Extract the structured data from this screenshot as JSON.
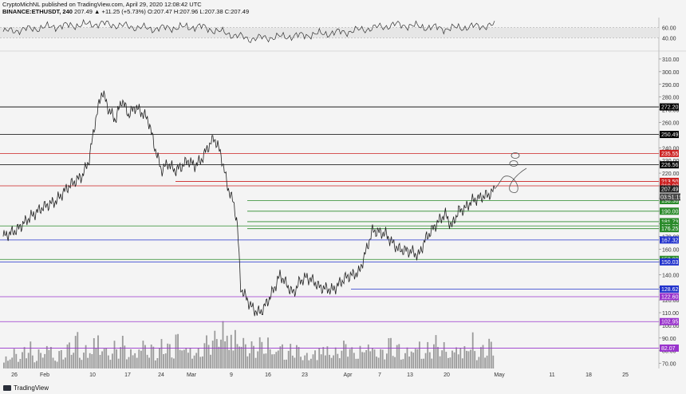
{
  "header": {
    "publisher_line": "CryptoMichNL published on TradingView.com, April 29, 2020 12:08:42 UTC",
    "symbol": "BINANCE:ETHUSDT, 240",
    "ohlc": "207.49 ▲ +11.25 (+5.73%) O:207.47 H:207.96 L:207.38 C:207.49"
  },
  "footer": {
    "brand": "TradingView"
  },
  "chart_data": [
    {
      "type": "line",
      "title": "",
      "rsi_ticks": [
        "60.00",
        "40.00"
      ],
      "ylim": [
        20,
        80
      ],
      "x": [
        0,
        0.1,
        0.2,
        0.3,
        0.4,
        0.5,
        0.6,
        0.7,
        0.8,
        0.9,
        1.0
      ],
      "values": [
        52,
        62,
        68,
        58,
        62,
        38,
        44,
        52,
        66,
        58,
        65
      ]
    },
    {
      "type": "line",
      "title": "",
      "ylim": [
        66,
        315
      ],
      "y_ticks": [
        "310.00",
        "300.00",
        "290.00",
        "280.00",
        "270.00",
        "260.00",
        "250.00",
        "240.00",
        "230.00",
        "220.00",
        "210.00",
        "200.00",
        "190.00",
        "180.00",
        "170.00",
        "160.00",
        "150.00",
        "140.00",
        "130.00",
        "120.00",
        "110.00",
        "100.00",
        "90.00",
        "80.00",
        "70.00"
      ],
      "x_ticks": [
        "26",
        "Feb",
        "10",
        "17",
        "24",
        "Mar",
        "9",
        "16",
        "23",
        "Apr",
        "7",
        "13",
        "20",
        "May",
        "11",
        "18",
        "25"
      ],
      "price": [
        [
          0,
          170
        ],
        [
          0.02,
          175
        ],
        [
          0.04,
          185
        ],
        [
          0.06,
          193
        ],
        [
          0.08,
          198
        ],
        [
          0.1,
          210
        ],
        [
          0.12,
          218
        ],
        [
          0.13,
          230
        ],
        [
          0.14,
          262
        ],
        [
          0.15,
          285
        ],
        [
          0.16,
          270
        ],
        [
          0.17,
          262
        ],
        [
          0.18,
          278
        ],
        [
          0.19,
          266
        ],
        [
          0.2,
          272
        ],
        [
          0.21,
          268
        ],
        [
          0.22,
          262
        ],
        [
          0.23,
          240
        ],
        [
          0.24,
          222
        ],
        [
          0.25,
          228
        ],
        [
          0.26,
          222
        ],
        [
          0.27,
          225
        ],
        [
          0.28,
          230
        ],
        [
          0.29,
          226
        ],
        [
          0.3,
          230
        ],
        [
          0.31,
          240
        ],
        [
          0.32,
          248
        ],
        [
          0.33,
          235
        ],
        [
          0.34,
          210
        ],
        [
          0.35,
          195
        ],
        [
          0.355,
          180
        ],
        [
          0.36,
          130
        ],
        [
          0.37,
          120
        ],
        [
          0.38,
          112
        ],
        [
          0.39,
          110
        ],
        [
          0.4,
          118
        ],
        [
          0.41,
          128
        ],
        [
          0.42,
          140
        ],
        [
          0.43,
          132
        ],
        [
          0.44,
          125
        ],
        [
          0.45,
          135
        ],
        [
          0.46,
          138
        ],
        [
          0.47,
          135
        ],
        [
          0.48,
          130
        ],
        [
          0.5,
          128
        ],
        [
          0.52,
          138
        ],
        [
          0.54,
          142
        ],
        [
          0.56,
          175
        ],
        [
          0.58,
          172
        ],
        [
          0.59,
          165
        ],
        [
          0.6,
          160
        ],
        [
          0.62,
          158
        ],
        [
          0.63,
          155
        ],
        [
          0.64,
          168
        ],
        [
          0.65,
          175
        ],
        [
          0.66,
          182
        ],
        [
          0.67,
          188
        ],
        [
          0.68,
          178
        ],
        [
          0.69,
          190
        ],
        [
          0.7,
          192
        ],
        [
          0.71,
          198
        ],
        [
          0.72,
          200
        ],
        [
          0.73,
          202
        ],
        [
          0.74,
          204
        ],
        [
          0.745,
          207.49
        ]
      ],
      "volume": [
        0.3,
        0.4,
        0.3,
        0.5,
        0.3,
        0.4,
        0.6,
        0.3,
        0.4,
        0.5,
        0.7,
        0.4,
        0.5,
        0.8,
        0.6,
        0.4,
        0.5,
        0.6,
        0.4,
        0.5,
        0.7,
        0.5,
        0.4,
        0.6,
        0.5,
        0.8,
        0.6,
        0.5,
        0.4,
        0.6,
        0.7,
        0.9,
        1.0,
        0.9,
        0.8,
        0.6,
        0.5,
        0.6,
        0.7,
        0.5,
        0.6,
        0.4,
        0.5,
        0.4,
        0.3,
        0.4,
        0.6,
        0.5,
        0.4,
        0.5,
        0.6,
        0.4,
        0.5,
        0.7,
        0.5,
        0.4,
        0.6,
        0.5,
        0.4,
        0.5,
        0.6,
        0.4,
        0.5,
        0.6,
        0.5,
        0.4,
        0.6,
        0.5,
        0.7,
        0.4,
        0.5,
        0.6
      ],
      "levels": [
        {
          "value": 272.2,
          "label": "272.20",
          "line": "#000000",
          "badge": "#000000"
        },
        {
          "value": 250.49,
          "label": "250.49",
          "line": "#000000",
          "badge": "#000000"
        },
        {
          "value": 235.55,
          "label": "235.55",
          "line": "#cc2222",
          "badge": "#cc2222"
        },
        {
          "value": 226.56,
          "label": "226.56",
          "line": "#000000",
          "badge": "#000000"
        },
        {
          "value": 213.5,
          "label": "213.50",
          "line": "#cc2222",
          "badge": "#cc2222"
        },
        {
          "value": 210.0,
          "label": "210.00",
          "line": "#cc2222",
          "badge": "#cc2222"
        },
        {
          "value": 207.49,
          "label": "207.49",
          "line": "none",
          "badge": "#222222"
        },
        {
          "value": 198.36,
          "label": "198.36",
          "line": "#2a8a2a",
          "badge": "#2a8a2a"
        },
        {
          "value": 190.0,
          "label": "190.00",
          "line": "#2a8a2a",
          "badge": "#2a8a2a"
        },
        {
          "value": 181.73,
          "label": "181.73",
          "line": "#2a8a2a",
          "badge": "#2a8a2a"
        },
        {
          "value": 178.38,
          "label": "178.38",
          "line": "#2a8a2a",
          "badge": "#2a8a2a"
        },
        {
          "value": 176.25,
          "label": "176.25",
          "line": "#2a8a2a",
          "badge": "#2a8a2a"
        },
        {
          "value": 167.32,
          "label": "167.32",
          "line": "#2233cc",
          "badge": "#2233cc"
        },
        {
          "value": 152.0,
          "label": "152.00",
          "line": "#2a8a2a",
          "badge": "#2a8a2a"
        },
        {
          "value": 150.03,
          "label": "150.03",
          "line": "#2233cc",
          "badge": "#2233cc"
        },
        {
          "value": 128.62,
          "label": "128.62",
          "line": "#2233cc",
          "badge": "#2233cc"
        },
        {
          "value": 122.6,
          "label": "122.60",
          "line": "#9933cc",
          "badge": "#9933cc"
        },
        {
          "value": 102.95,
          "label": "102.95",
          "line": "#9933cc",
          "badge": "#9933cc"
        },
        {
          "value": 82.07,
          "label": "82.07",
          "line": "#9933cc",
          "badge": "#9933cc"
        }
      ],
      "countdown": "03:51:19"
    }
  ]
}
